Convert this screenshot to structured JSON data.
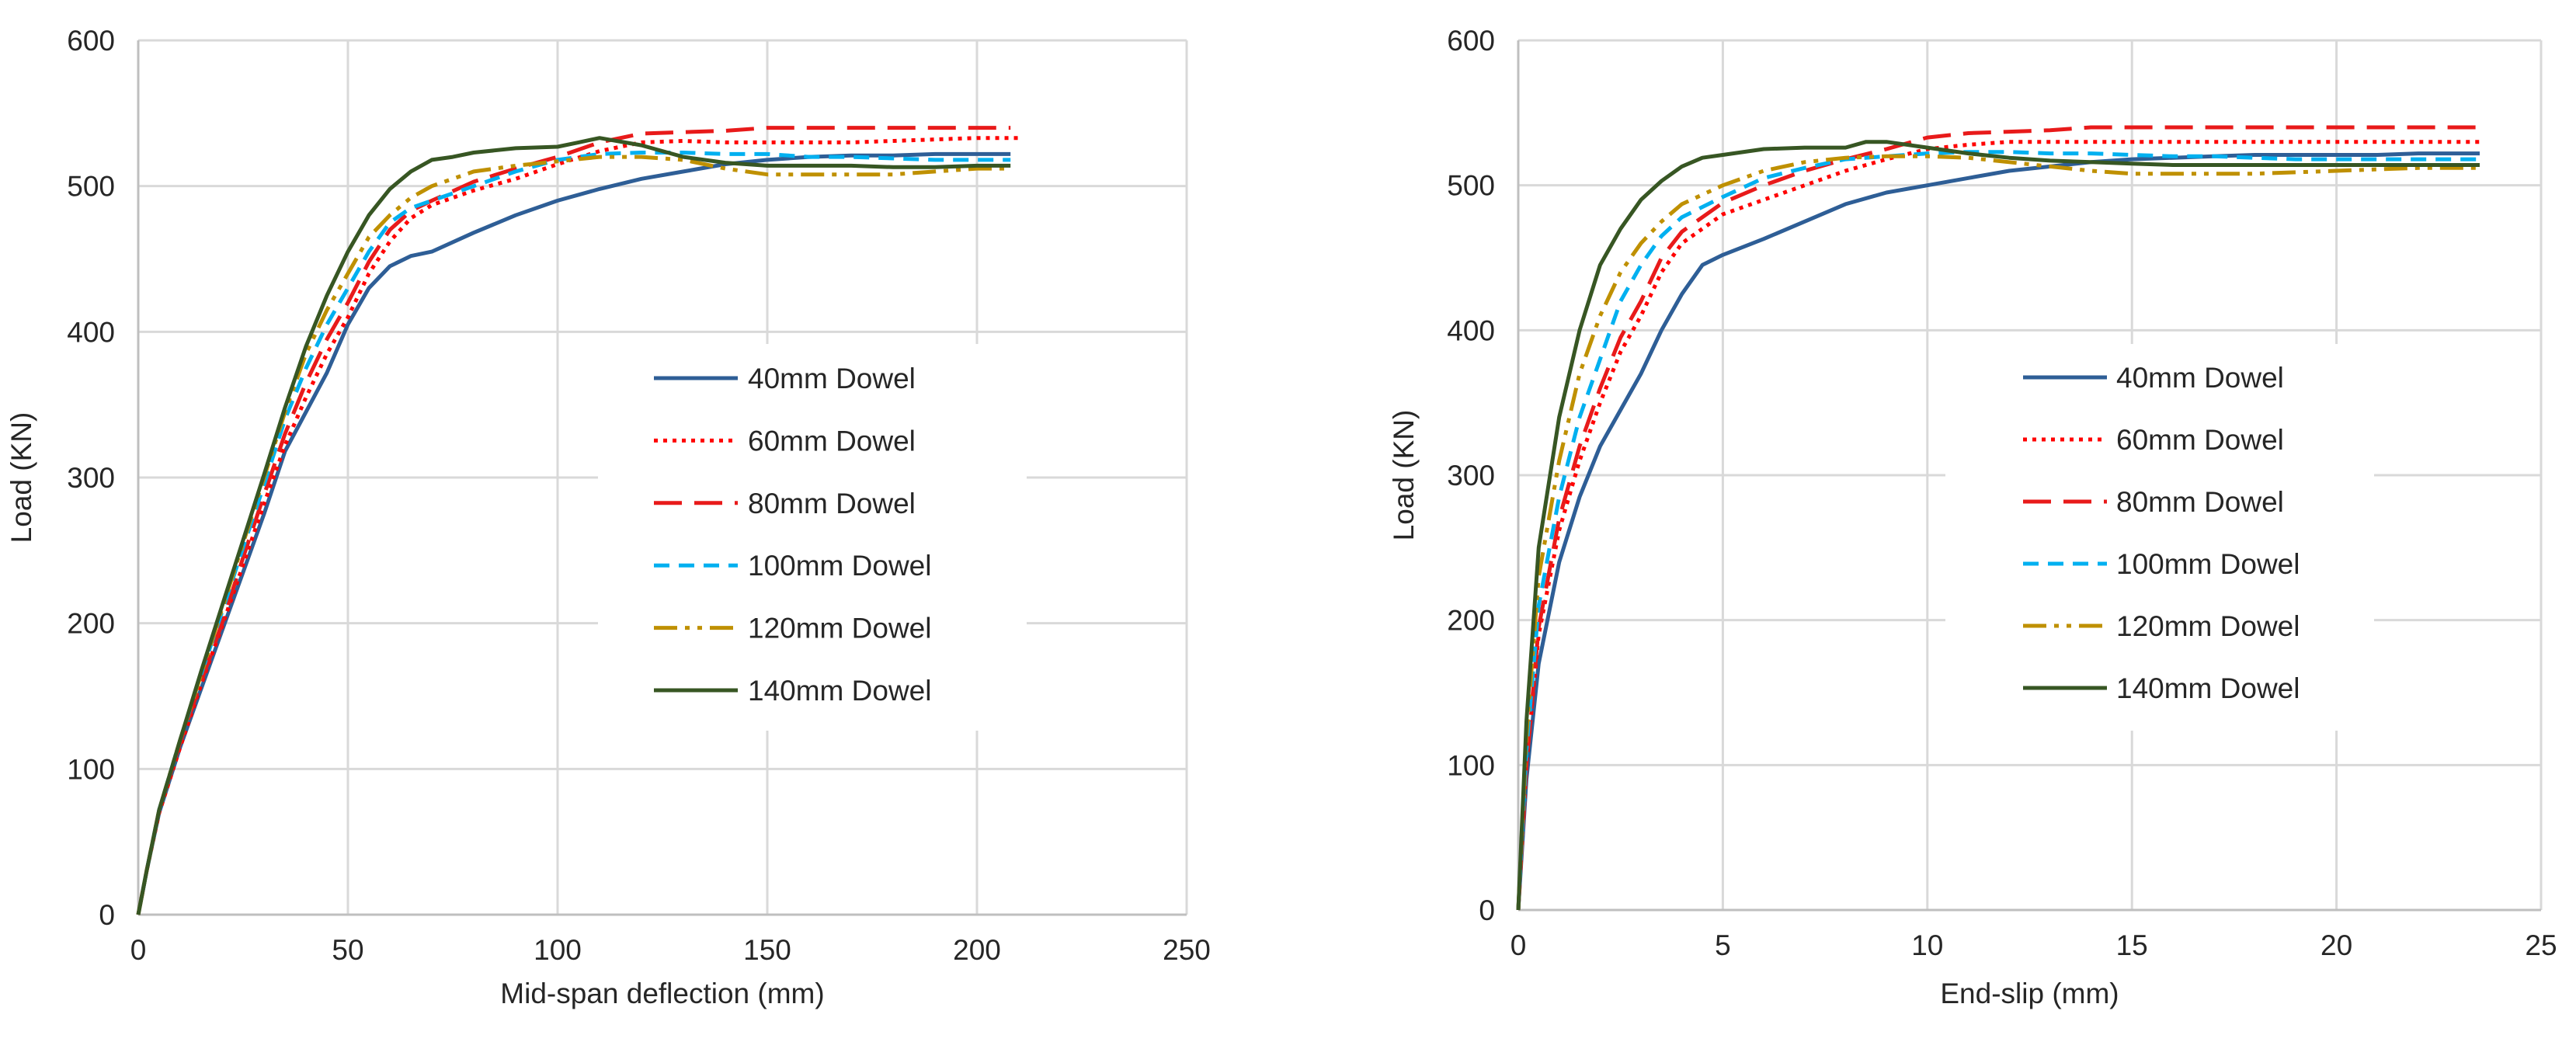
{
  "chart_data": [
    {
      "type": "line",
      "title": "",
      "xlabel": "Mid-span deflection (mm)",
      "ylabel": "Load (KN)",
      "xlim": [
        0,
        250
      ],
      "ylim": [
        0,
        600
      ],
      "xticks": [
        0,
        50,
        100,
        150,
        200,
        250
      ],
      "yticks": [
        0,
        100,
        200,
        300,
        400,
        500,
        600
      ],
      "grid": true,
      "legend_position": "center-right",
      "series": [
        {
          "name": "40mm Dowel",
          "color": "#2e5e96",
          "dash": "solid",
          "x": [
            0,
            2,
            5,
            10,
            15,
            20,
            25,
            30,
            35,
            40,
            45,
            50,
            55,
            60,
            65,
            70,
            80,
            90,
            100,
            110,
            120,
            130,
            140,
            150,
            160,
            170,
            180,
            190,
            200,
            208
          ],
          "y": [
            0,
            30,
            70,
            115,
            155,
            195,
            235,
            275,
            318,
            345,
            372,
            405,
            430,
            445,
            452,
            455,
            468,
            480,
            490,
            498,
            505,
            510,
            515,
            518,
            520,
            521,
            521,
            522,
            522,
            522
          ]
        },
        {
          "name": "60mm Dowel",
          "color": "#ff0000",
          "dash": "dot",
          "x": [
            0,
            2,
            5,
            10,
            15,
            20,
            25,
            30,
            35,
            40,
            45,
            50,
            55,
            60,
            65,
            70,
            80,
            90,
            100,
            110,
            120,
            130,
            140,
            150,
            160,
            170,
            180,
            190,
            200,
            210
          ],
          "y": [
            0,
            30,
            70,
            115,
            158,
            198,
            240,
            282,
            322,
            355,
            385,
            410,
            440,
            462,
            478,
            487,
            497,
            505,
            515,
            524,
            530,
            531,
            530,
            530,
            530,
            530,
            531,
            532,
            533,
            533
          ]
        },
        {
          "name": "80mm Dowel",
          "color": "#e81a1a",
          "dash": "longdash",
          "x": [
            0,
            2,
            5,
            10,
            15,
            20,
            25,
            30,
            35,
            40,
            45,
            50,
            55,
            60,
            65,
            70,
            80,
            90,
            100,
            110,
            120,
            130,
            140,
            150,
            160,
            170,
            180,
            190,
            200,
            208
          ],
          "y": [
            0,
            30,
            72,
            118,
            160,
            200,
            245,
            288,
            330,
            365,
            395,
            420,
            448,
            470,
            483,
            490,
            503,
            512,
            520,
            530,
            536,
            537,
            538,
            540,
            540,
            540,
            540,
            540,
            540,
            540
          ]
        },
        {
          "name": "100mm Dowel",
          "color": "#00b0f0",
          "dash": "dash",
          "x": [
            0,
            2,
            5,
            10,
            15,
            20,
            25,
            30,
            35,
            40,
            45,
            50,
            55,
            60,
            65,
            70,
            80,
            90,
            100,
            110,
            120,
            130,
            140,
            150,
            160,
            170,
            180,
            190,
            200,
            208
          ],
          "y": [
            0,
            30,
            72,
            120,
            165,
            208,
            252,
            295,
            340,
            375,
            405,
            430,
            455,
            475,
            485,
            490,
            500,
            510,
            518,
            522,
            523,
            523,
            522,
            522,
            520,
            520,
            519,
            518,
            518,
            518
          ]
        },
        {
          "name": "120mm Dowel",
          "color": "#bf9000",
          "dash": "dashdotdot",
          "x": [
            0,
            2,
            5,
            10,
            15,
            20,
            25,
            30,
            35,
            40,
            45,
            50,
            55,
            60,
            65,
            70,
            80,
            90,
            100,
            110,
            120,
            130,
            140,
            150,
            160,
            170,
            180,
            190,
            200,
            208
          ],
          "y": [
            0,
            30,
            72,
            120,
            165,
            210,
            255,
            300,
            345,
            385,
            415,
            440,
            465,
            480,
            492,
            500,
            510,
            514,
            517,
            520,
            520,
            518,
            512,
            508,
            508,
            508,
            508,
            510,
            512,
            512
          ]
        },
        {
          "name": "140mm Dowel",
          "color": "#375623",
          "dash": "solid",
          "x": [
            0,
            2,
            5,
            10,
            15,
            20,
            25,
            30,
            35,
            40,
            45,
            50,
            55,
            60,
            65,
            70,
            75,
            80,
            90,
            100,
            105,
            110,
            120,
            130,
            140,
            150,
            160,
            170,
            180,
            190,
            200,
            208
          ],
          "y": [
            0,
            30,
            72,
            120,
            167,
            212,
            257,
            302,
            348,
            390,
            425,
            455,
            480,
            498,
            510,
            518,
            520,
            523,
            526,
            527,
            530,
            533,
            528,
            520,
            516,
            514,
            514,
            514,
            513,
            513,
            514,
            514
          ]
        }
      ]
    },
    {
      "type": "line",
      "title": "",
      "xlabel": "End-slip (mm)",
      "ylabel": "Load (KN)",
      "xlim": [
        0,
        25
      ],
      "ylim": [
        0,
        600
      ],
      "xticks": [
        0,
        5,
        10,
        15,
        20,
        25
      ],
      "yticks": [
        0,
        100,
        200,
        300,
        400,
        500,
        600
      ],
      "grid": true,
      "legend_position": "center-right",
      "series": [
        {
          "name": "40mm Dowel",
          "color": "#2e5e96",
          "dash": "solid",
          "x": [
            0,
            0.2,
            0.5,
            1,
            1.5,
            2,
            2.5,
            3,
            3.5,
            4,
            4.5,
            5,
            6,
            7,
            8,
            9,
            10,
            11,
            12,
            13,
            14,
            15,
            16,
            17,
            18,
            19,
            20,
            21,
            22,
            23,
            23.5
          ],
          "y": [
            0,
            90,
            170,
            240,
            285,
            320,
            345,
            370,
            400,
            425,
            445,
            452,
            463,
            475,
            487,
            495,
            500,
            505,
            510,
            513,
            516,
            518,
            519,
            520,
            521,
            521,
            521,
            521,
            522,
            522,
            522
          ]
        },
        {
          "name": "60mm Dowel",
          "color": "#ff0000",
          "dash": "dot",
          "x": [
            0,
            0.2,
            0.5,
            1,
            1.5,
            2,
            2.5,
            3,
            3.5,
            4,
            5,
            6,
            7,
            8,
            9,
            10,
            11,
            12,
            13,
            14,
            15,
            16,
            17,
            18,
            19,
            20,
            21,
            22,
            23,
            23.5
          ],
          "y": [
            0,
            100,
            190,
            262,
            310,
            350,
            385,
            410,
            440,
            460,
            480,
            490,
            500,
            510,
            518,
            525,
            528,
            530,
            530,
            530,
            530,
            530,
            530,
            530,
            530,
            530,
            530,
            530,
            530,
            530
          ]
        },
        {
          "name": "80mm Dowel",
          "color": "#e81a1a",
          "dash": "longdash",
          "x": [
            0,
            0.2,
            0.5,
            1,
            1.5,
            2,
            2.5,
            3,
            3.5,
            4,
            5,
            6,
            7,
            8,
            9,
            10,
            11,
            12,
            13,
            14,
            15,
            16,
            17,
            18,
            19,
            20,
            21,
            22,
            23,
            23.5
          ],
          "y": [
            0,
            100,
            195,
            270,
            320,
            360,
            395,
            420,
            450,
            468,
            488,
            500,
            510,
            518,
            525,
            533,
            536,
            537,
            538,
            540,
            540,
            540,
            540,
            540,
            540,
            540,
            540,
            540,
            540,
            540
          ]
        },
        {
          "name": "100mm Dowel",
          "color": "#00b0f0",
          "dash": "dash",
          "x": [
            0,
            0.2,
            0.5,
            1,
            1.5,
            2,
            2.5,
            3,
            3.5,
            4,
            5,
            6,
            7,
            8,
            9,
            10,
            11,
            12,
            13,
            14,
            15,
            16,
            17,
            18,
            19,
            20,
            21,
            22,
            23,
            23.5
          ],
          "y": [
            0,
            110,
            210,
            285,
            340,
            380,
            420,
            445,
            465,
            478,
            492,
            505,
            512,
            518,
            520,
            522,
            523,
            523,
            522,
            522,
            521,
            520,
            520,
            519,
            518,
            518,
            518,
            518,
            518,
            518
          ]
        },
        {
          "name": "120mm Dowel",
          "color": "#bf9000",
          "dash": "dashdotdot",
          "x": [
            0,
            0.2,
            0.5,
            1,
            1.5,
            2,
            2.5,
            3,
            3.5,
            4,
            5,
            6,
            7,
            8,
            9,
            10,
            11,
            12,
            13,
            14,
            15,
            16,
            17,
            18,
            19,
            20,
            21,
            22,
            23,
            23.5
          ],
          "y": [
            0,
            120,
            230,
            310,
            370,
            410,
            440,
            460,
            475,
            487,
            500,
            510,
            516,
            519,
            520,
            520,
            519,
            516,
            513,
            510,
            508,
            508,
            508,
            508,
            509,
            510,
            511,
            512,
            512,
            512
          ]
        },
        {
          "name": "140mm Dowel",
          "color": "#375623",
          "dash": "solid",
          "x": [
            0,
            0.2,
            0.5,
            1,
            1.5,
            2,
            2.5,
            3,
            3.5,
            4,
            4.5,
            5,
            6,
            7,
            8,
            8.5,
            9,
            10,
            11,
            12,
            13,
            14,
            15,
            16,
            17,
            18,
            19,
            20,
            21,
            22,
            23,
            23.5
          ],
          "y": [
            0,
            130,
            250,
            340,
            400,
            445,
            470,
            490,
            503,
            513,
            519,
            521,
            525,
            526,
            526,
            530,
            530,
            526,
            522,
            519,
            517,
            516,
            515,
            514,
            514,
            514,
            514,
            514,
            514,
            514,
            514,
            514
          ]
        }
      ]
    }
  ]
}
